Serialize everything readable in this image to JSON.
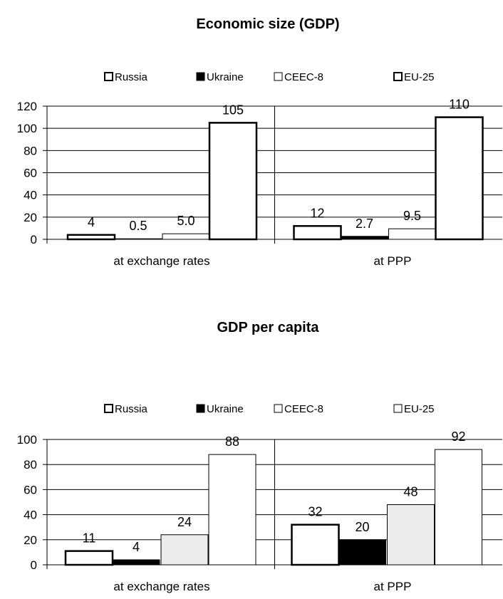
{
  "chart_data": [
    {
      "type": "bar",
      "title": "Economic size (GDP)",
      "categories": [
        "at exchange rates",
        "at PPP"
      ],
      "series": [
        {
          "name": "Russia",
          "values": [
            4,
            12
          ],
          "labels": [
            "4",
            "12"
          ],
          "fill": "#ffffff",
          "stroke_width": 2.5
        },
        {
          "name": "Ukraine",
          "values": [
            0.5,
            2.7
          ],
          "labels": [
            "0.5",
            "2.7"
          ],
          "fill": "#000000",
          "stroke_width": 1
        },
        {
          "name": "CEEC-8",
          "values": [
            5.0,
            9.5
          ],
          "labels": [
            "5.0",
            "9.5"
          ],
          "fill": "#ffffff",
          "stroke_width": 1
        },
        {
          "name": "EU-25",
          "values": [
            105,
            110
          ],
          "labels": [
            "105",
            "110"
          ],
          "fill": "#ffffff",
          "stroke_width": 2.5
        }
      ],
      "yticks": [
        "0",
        "20",
        "40",
        "60",
        "80",
        "100",
        "120"
      ],
      "ylim": [
        0,
        120
      ],
      "grid": true,
      "legend": "top"
    },
    {
      "type": "bar",
      "title": "GDP per capita",
      "categories": [
        "at exchange rates",
        "at PPP"
      ],
      "series": [
        {
          "name": "Russia",
          "values": [
            11,
            32
          ],
          "labels": [
            "11",
            "32"
          ],
          "fill": "#ffffff",
          "stroke_width": 2.5
        },
        {
          "name": "Ukraine",
          "values": [
            4,
            20
          ],
          "labels": [
            "4",
            "20"
          ],
          "fill": "#000000",
          "stroke_width": 1
        },
        {
          "name": "CEEC-8",
          "values": [
            24,
            48
          ],
          "labels": [
            "24",
            "48"
          ],
          "fill": "#ececec",
          "stroke_width": 1
        },
        {
          "name": "EU-25",
          "values": [
            88,
            92
          ],
          "labels": [
            "88",
            "92"
          ],
          "fill": "#ffffff",
          "stroke_width": 1
        }
      ],
      "yticks": [
        "0",
        "20",
        "40",
        "60",
        "80",
        "100"
      ],
      "ylim": [
        0,
        100
      ],
      "grid": true,
      "legend": "top"
    }
  ]
}
